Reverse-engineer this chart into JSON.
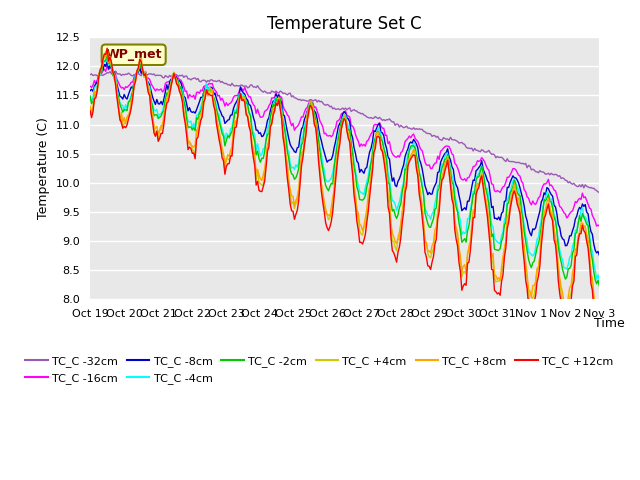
{
  "title": "Temperature Set C",
  "xlabel": "Time",
  "ylabel": "Temperature (C)",
  "ylim": [
    8.0,
    12.5
  ],
  "xtick_labels": [
    "Oct 19",
    "Oct 20",
    "Oct 21",
    "Oct 22",
    "Oct 23",
    "Oct 24",
    "Oct 25",
    "Oct 26",
    "Oct 27",
    "Oct 28",
    "Oct 29",
    "Oct 30",
    "Oct 31",
    "Nov 1",
    "Nov 2",
    "Nov 3"
  ],
  "ytick_labels": [
    "8.0",
    "8.5",
    "9.0",
    "9.5",
    "10.0",
    "10.5",
    "11.0",
    "11.5",
    "12.0",
    "12.5"
  ],
  "ytick_vals": [
    8.0,
    8.5,
    9.0,
    9.5,
    10.0,
    10.5,
    11.0,
    11.5,
    12.0,
    12.5
  ],
  "series_colors": {
    "TC_C -32cm": "#9B59B6",
    "TC_C -16cm": "#FF00FF",
    "TC_C -8cm": "#0000CD",
    "TC_C -4cm": "#00FFFF",
    "TC_C -2cm": "#00CC00",
    "TC_C +4cm": "#CCCC00",
    "TC_C +8cm": "#FFA500",
    "TC_C +12cm": "#FF0000"
  },
  "wp_met_box_color": "#FFFFCC",
  "wp_met_text_color": "#800000",
  "wp_met_border_color": "#808000",
  "background_color": "#FFFFFF",
  "plot_bg_color": "#E8E8E8",
  "grid_color": "#FFFFFF",
  "title_fontsize": 12,
  "legend_fontsize": 8,
  "tick_fontsize": 8
}
